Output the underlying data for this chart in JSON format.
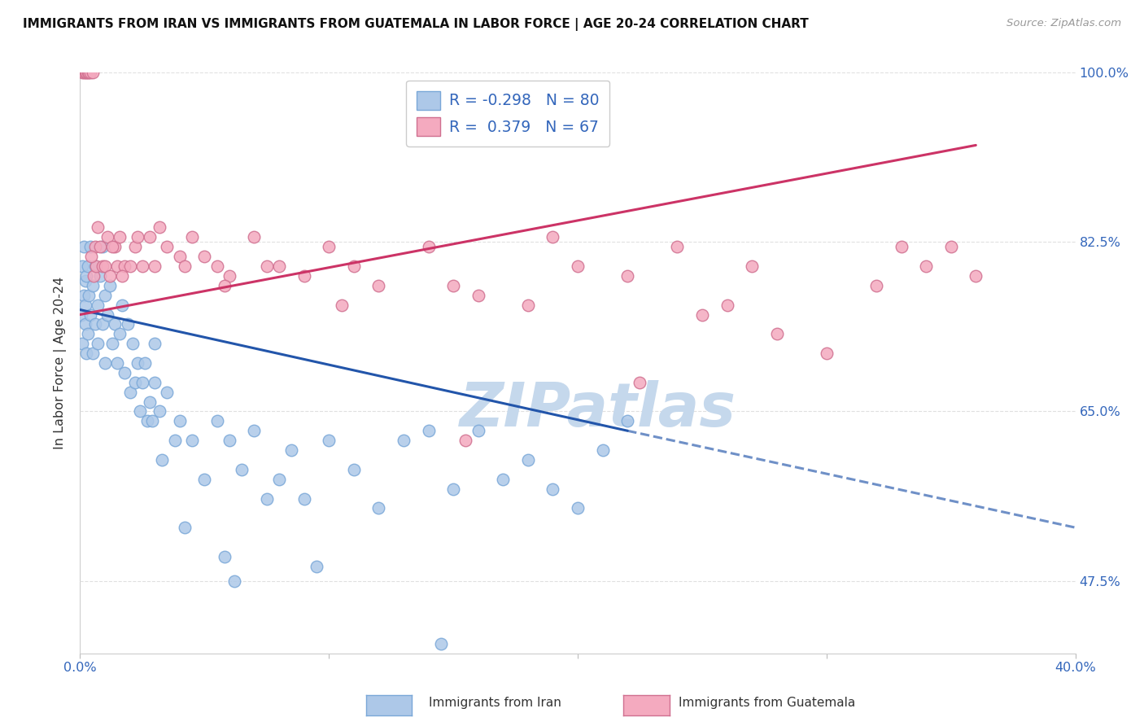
{
  "title": "IMMIGRANTS FROM IRAN VS IMMIGRANTS FROM GUATEMALA IN LABOR FORCE | AGE 20-24 CORRELATION CHART",
  "source": "Source: ZipAtlas.com",
  "ylabel": "In Labor Force | Age 20-24",
  "legend_label_iran": "Immigrants from Iran",
  "legend_label_guat": "Immigrants from Guatemala",
  "R_iran": -0.298,
  "N_iran": 80,
  "R_guat": 0.379,
  "N_guat": 67,
  "color_iran_fill": "#adc8e8",
  "color_iran_edge": "#7aa8d8",
  "color_iran_line": "#2255aa",
  "color_guat_fill": "#f4aabf",
  "color_guat_edge": "#d07090",
  "color_guat_line": "#cc3366",
  "xmin": 0.0,
  "xmax": 40.0,
  "ymin": 40.0,
  "ymax": 100.0,
  "y_ticks": [
    47.5,
    65.0,
    82.5,
    100.0
  ],
  "x_ticks": [
    0.0,
    10.0,
    20.0,
    30.0,
    40.0
  ],
  "background_color": "#ffffff",
  "grid_color": "#e0e0e0",
  "watermark_text": "ZIPatlas",
  "watermark_color": "#c5d8ec",
  "tick_color": "#3366bb",
  "title_color": "#111111",
  "source_color": "#999999",
  "iran_x": [
    0.05,
    0.1,
    0.1,
    0.15,
    0.15,
    0.2,
    0.2,
    0.2,
    0.25,
    0.25,
    0.3,
    0.3,
    0.35,
    0.4,
    0.4,
    0.5,
    0.5,
    0.6,
    0.6,
    0.7,
    0.7,
    0.8,
    0.9,
    0.9,
    1.0,
    1.0,
    1.1,
    1.2,
    1.3,
    1.4,
    1.5,
    1.6,
    1.7,
    1.8,
    1.9,
    2.0,
    2.1,
    2.2,
    2.3,
    2.4,
    2.5,
    2.6,
    2.7,
    2.8,
    3.0,
    3.0,
    3.2,
    3.5,
    3.8,
    4.0,
    4.5,
    5.0,
    5.5,
    6.0,
    6.5,
    7.0,
    8.0,
    8.5,
    9.0,
    10.0,
    11.0,
    12.0,
    13.0,
    14.0,
    15.0,
    16.0,
    17.0,
    18.0,
    19.0,
    20.0,
    21.0,
    22.0,
    7.5,
    4.2,
    3.3,
    2.9,
    5.8,
    6.2,
    9.5,
    14.5
  ],
  "iran_y": [
    75.0,
    72.0,
    80.0,
    77.0,
    82.0,
    74.0,
    78.5,
    76.0,
    71.0,
    79.0,
    73.0,
    80.0,
    77.0,
    75.0,
    82.0,
    71.0,
    78.0,
    74.0,
    80.0,
    72.0,
    76.0,
    79.0,
    74.0,
    82.0,
    70.0,
    77.0,
    75.0,
    78.0,
    72.0,
    74.0,
    70.0,
    73.0,
    76.0,
    69.0,
    74.0,
    67.0,
    72.0,
    68.0,
    70.0,
    65.0,
    68.0,
    70.0,
    64.0,
    66.0,
    68.0,
    72.0,
    65.0,
    67.0,
    62.0,
    64.0,
    62.0,
    58.0,
    64.0,
    62.0,
    59.0,
    63.0,
    58.0,
    61.0,
    56.0,
    62.0,
    59.0,
    55.0,
    62.0,
    63.0,
    57.0,
    63.0,
    58.0,
    60.0,
    57.0,
    55.0,
    61.0,
    64.0,
    56.0,
    53.0,
    60.0,
    64.0,
    50.0,
    47.5,
    49.0,
    41.0
  ],
  "guat_x": [
    0.1,
    0.15,
    0.2,
    0.25,
    0.3,
    0.35,
    0.4,
    0.5,
    0.55,
    0.6,
    0.65,
    0.7,
    0.8,
    0.9,
    1.0,
    1.1,
    1.2,
    1.4,
    1.5,
    1.6,
    1.8,
    2.0,
    2.2,
    2.5,
    2.8,
    3.0,
    3.5,
    4.0,
    4.5,
    5.0,
    5.5,
    6.0,
    7.0,
    8.0,
    9.0,
    10.0,
    11.0,
    12.0,
    14.0,
    15.0,
    16.0,
    18.0,
    20.0,
    22.0,
    24.0,
    25.0,
    26.0,
    28.0,
    30.0,
    32.0,
    34.0,
    35.0,
    36.0,
    0.45,
    1.3,
    1.7,
    2.3,
    3.2,
    4.2,
    5.8,
    7.5,
    10.5,
    19.0,
    27.0,
    33.0,
    15.5,
    22.5
  ],
  "guat_y": [
    100.0,
    100.0,
    100.0,
    100.0,
    100.0,
    100.0,
    100.0,
    100.0,
    79.0,
    82.0,
    80.0,
    84.0,
    82.0,
    80.0,
    80.0,
    83.0,
    79.0,
    82.0,
    80.0,
    83.0,
    80.0,
    80.0,
    82.0,
    80.0,
    83.0,
    80.0,
    82.0,
    81.0,
    83.0,
    81.0,
    80.0,
    79.0,
    83.0,
    80.0,
    79.0,
    82.0,
    80.0,
    78.0,
    82.0,
    78.0,
    77.0,
    76.0,
    80.0,
    79.0,
    82.0,
    75.0,
    76.0,
    73.0,
    71.0,
    78.0,
    80.0,
    82.0,
    79.0,
    81.0,
    82.0,
    79.0,
    83.0,
    84.0,
    80.0,
    78.0,
    80.0,
    76.0,
    83.0,
    80.0,
    82.0,
    62.0,
    68.0
  ],
  "iran_line_x0": 0.0,
  "iran_line_x1": 22.0,
  "iran_line_y0": 75.5,
  "iran_line_y1": 63.0,
  "iran_dash_x0": 22.0,
  "iran_dash_x1": 40.0,
  "iran_dash_y0": 63.0,
  "iran_dash_y1": 53.0,
  "guat_line_x0": 0.0,
  "guat_line_x1": 36.0,
  "guat_line_y0": 75.0,
  "guat_line_y1": 92.5
}
